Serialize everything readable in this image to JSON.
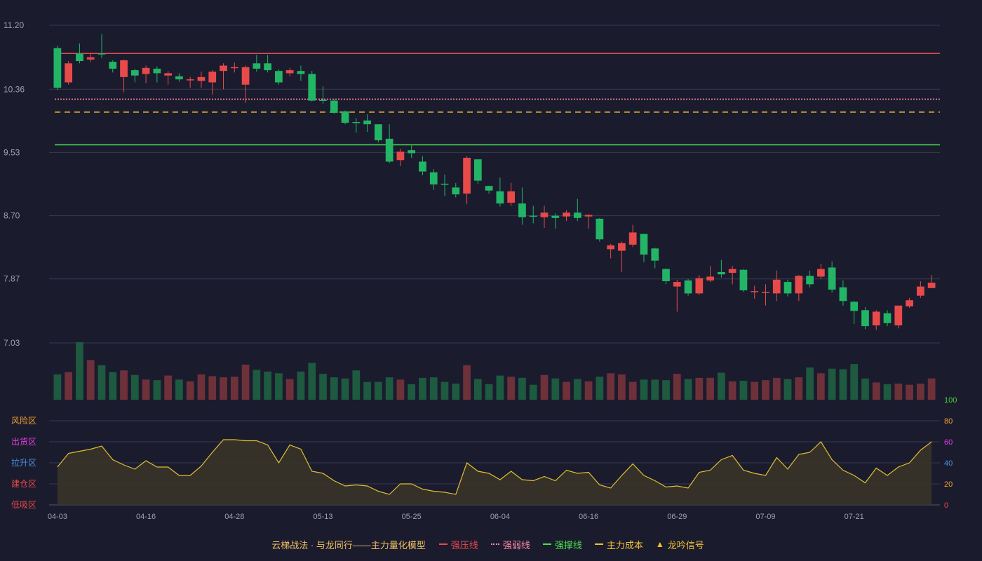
{
  "chart_data": {
    "type": "candlestick",
    "title": "云梯战法 · 与龙同行——主力量化模型",
    "x_ticks": [
      "04-03",
      "04-16",
      "04-28",
      "05-13",
      "05-25",
      "06-04",
      "06-16",
      "06-29",
      "07-09",
      "07-21"
    ],
    "x_tick_index": [
      0,
      8,
      16,
      24,
      32,
      40,
      48,
      56,
      64,
      72
    ],
    "price_axis": {
      "ticks": [
        11.2,
        10.36,
        9.53,
        8.7,
        7.87,
        7.03
      ],
      "ylim": [
        7.03,
        11.2
      ]
    },
    "ohlc": [
      [
        10.9,
        10.38,
        10.35,
        10.93
      ],
      [
        10.45,
        10.7,
        10.42,
        10.73
      ],
      [
        10.83,
        10.73,
        10.7,
        10.96
      ],
      [
        10.75,
        10.78,
        10.72,
        10.84
      ],
      [
        10.83,
        10.82,
        10.77,
        11.08
      ],
      [
        10.72,
        10.63,
        10.58,
        10.74
      ],
      [
        10.52,
        10.74,
        10.32,
        10.75
      ],
      [
        10.61,
        10.54,
        10.45,
        10.63
      ],
      [
        10.56,
        10.64,
        10.44,
        10.67
      ],
      [
        10.63,
        10.57,
        10.45,
        10.66
      ],
      [
        10.54,
        10.57,
        10.42,
        10.6
      ],
      [
        10.53,
        10.49,
        10.46,
        10.57
      ],
      [
        10.48,
        10.49,
        10.38,
        10.52
      ],
      [
        10.47,
        10.52,
        10.38,
        10.59
      ],
      [
        10.45,
        10.59,
        10.29,
        10.61
      ],
      [
        10.6,
        10.67,
        10.36,
        10.7
      ],
      [
        10.65,
        10.65,
        10.58,
        10.71
      ],
      [
        10.42,
        10.65,
        10.18,
        10.67
      ],
      [
        10.7,
        10.63,
        10.59,
        10.81
      ],
      [
        10.7,
        10.61,
        10.58,
        10.81
      ],
      [
        10.6,
        10.45,
        10.42,
        10.62
      ],
      [
        10.57,
        10.61,
        10.53,
        10.64
      ],
      [
        10.6,
        10.56,
        10.47,
        10.67
      ],
      [
        10.56,
        10.21,
        10.2,
        10.6
      ],
      [
        10.22,
        10.21,
        10.17,
        10.4
      ],
      [
        10.21,
        10.05,
        10.04,
        10.23
      ],
      [
        10.07,
        9.92,
        9.9,
        10.08
      ],
      [
        9.93,
        9.92,
        9.79,
        9.98
      ],
      [
        9.95,
        9.9,
        9.8,
        10.03
      ],
      [
        9.9,
        9.69,
        9.66,
        9.9
      ],
      [
        9.71,
        9.41,
        9.39,
        9.9
      ],
      [
        9.43,
        9.54,
        9.35,
        9.58
      ],
      [
        9.56,
        9.52,
        9.46,
        9.63
      ],
      [
        9.41,
        9.28,
        9.23,
        9.48
      ],
      [
        9.27,
        9.11,
        9.04,
        9.31
      ],
      [
        9.12,
        9.11,
        8.96,
        9.24
      ],
      [
        9.07,
        8.98,
        8.94,
        9.13
      ],
      [
        8.99,
        9.46,
        8.85,
        9.48
      ],
      [
        9.44,
        9.16,
        9.12,
        9.44
      ],
      [
        9.09,
        9.03,
        8.99,
        9.09
      ],
      [
        9.02,
        8.86,
        8.82,
        9.2
      ],
      [
        8.87,
        9.02,
        8.83,
        9.13
      ],
      [
        8.86,
        8.68,
        8.58,
        9.07
      ],
      [
        8.7,
        8.69,
        8.6,
        8.83
      ],
      [
        8.68,
        8.74,
        8.54,
        8.83
      ],
      [
        8.7,
        8.67,
        8.53,
        8.73
      ],
      [
        8.69,
        8.74,
        8.63,
        8.77
      ],
      [
        8.74,
        8.67,
        8.63,
        8.92
      ],
      [
        8.69,
        8.71,
        8.53,
        8.72
      ],
      [
        8.66,
        8.39,
        8.36,
        8.67
      ],
      [
        8.26,
        8.31,
        8.14,
        8.33
      ],
      [
        8.24,
        8.34,
        7.96,
        8.36
      ],
      [
        8.32,
        8.48,
        8.29,
        8.58
      ],
      [
        8.46,
        8.19,
        8.09,
        8.46
      ],
      [
        8.27,
        8.11,
        8.01,
        8.28
      ],
      [
        8.0,
        7.84,
        7.8,
        8.01
      ],
      [
        7.77,
        7.83,
        7.44,
        7.86
      ],
      [
        7.85,
        7.68,
        7.65,
        7.87
      ],
      [
        7.68,
        7.88,
        7.66,
        7.92
      ],
      [
        7.85,
        7.9,
        7.83,
        8.04
      ],
      [
        7.96,
        7.93,
        7.89,
        8.12
      ],
      [
        7.95,
        8.0,
        7.8,
        8.04
      ],
      [
        7.99,
        7.72,
        7.7,
        8.0
      ],
      [
        7.71,
        7.71,
        7.61,
        7.78
      ],
      [
        7.7,
        7.7,
        7.52,
        7.8
      ],
      [
        7.68,
        7.86,
        7.58,
        7.98
      ],
      [
        7.83,
        7.68,
        7.64,
        7.86
      ],
      [
        7.68,
        7.91,
        7.58,
        7.92
      ],
      [
        7.91,
        7.8,
        7.76,
        7.98
      ],
      [
        7.9,
        8.0,
        7.87,
        8.07
      ],
      [
        8.02,
        7.73,
        7.69,
        8.1
      ],
      [
        7.76,
        7.58,
        7.52,
        7.85
      ],
      [
        7.57,
        7.45,
        7.28,
        7.58
      ],
      [
        7.46,
        7.25,
        7.21,
        7.5
      ],
      [
        7.26,
        7.44,
        7.2,
        7.46
      ],
      [
        7.42,
        7.29,
        7.25,
        7.46
      ],
      [
        7.26,
        7.52,
        7.22,
        7.52
      ],
      [
        7.51,
        7.59,
        7.49,
        7.62
      ],
      [
        7.65,
        7.77,
        7.62,
        7.84
      ],
      [
        7.75,
        7.82,
        7.75,
        7.92
      ]
    ],
    "lines": [
      {
        "name": "强压线",
        "value": 10.83,
        "color": "#e84a4a",
        "style": "solid"
      },
      {
        "name": "强弱线",
        "value": 10.23,
        "color": "#ff8aa8",
        "style": "dotted"
      },
      {
        "name": "强撑线",
        "value": 9.63,
        "color": "#4be04b",
        "style": "solid"
      },
      {
        "name": "主力成本",
        "value": 10.06,
        "color": "#f0c030",
        "style": "dashed"
      }
    ],
    "volume": [
      0.44,
      0.48,
      1.0,
      0.69,
      0.6,
      0.48,
      0.51,
      0.43,
      0.35,
      0.34,
      0.42,
      0.35,
      0.32,
      0.44,
      0.41,
      0.39,
      0.4,
      0.61,
      0.52,
      0.49,
      0.46,
      0.36,
      0.49,
      0.64,
      0.45,
      0.39,
      0.37,
      0.51,
      0.31,
      0.31,
      0.39,
      0.35,
      0.27,
      0.38,
      0.39,
      0.31,
      0.28,
      0.6,
      0.36,
      0.27,
      0.42,
      0.4,
      0.38,
      0.26,
      0.43,
      0.37,
      0.31,
      0.36,
      0.32,
      0.4,
      0.46,
      0.44,
      0.31,
      0.35,
      0.35,
      0.34,
      0.45,
      0.36,
      0.38,
      0.38,
      0.47,
      0.32,
      0.33,
      0.31,
      0.34,
      0.38,
      0.36,
      0.39,
      0.56,
      0.46,
      0.54,
      0.53,
      0.62,
      0.37,
      0.3,
      0.27,
      0.28,
      0.26,
      0.28,
      0.37
    ],
    "indicator": {
      "ylim": [
        0,
        100
      ],
      "right_ticks": [
        {
          "label": "100",
          "value": 100,
          "color": "#3fd43f"
        },
        {
          "label": "80",
          "value": 80,
          "color": "#f0a030"
        },
        {
          "label": "60",
          "value": 60,
          "color": "#e040e0"
        },
        {
          "label": "40",
          "value": 40,
          "color": "#4a90e2"
        },
        {
          "label": "20",
          "value": 20,
          "color": "#f0a030"
        },
        {
          "label": "0",
          "value": 0,
          "color": "#e84a4a"
        }
      ],
      "zones": [
        {
          "label": "风险区",
          "value": 80,
          "color": "#f0a030"
        },
        {
          "label": "出货区",
          "value": 60,
          "color": "#e040e0"
        },
        {
          "label": "拉升区",
          "value": 40,
          "color": "#4a90e2"
        },
        {
          "label": "建仓区",
          "value": 20,
          "color": "#e84a4a"
        },
        {
          "label": "低吸区",
          "value": 0,
          "color": "#e84a4a"
        }
      ],
      "values": [
        36,
        49,
        51,
        53,
        56,
        43,
        38,
        34,
        42,
        36,
        36,
        28,
        28,
        37,
        50,
        62,
        62,
        61,
        61,
        57,
        40,
        57,
        53,
        32,
        30,
        23,
        18,
        19,
        18,
        13,
        10,
        20,
        20,
        15,
        13,
        12,
        10,
        40,
        32,
        30,
        24,
        32,
        24,
        23,
        27,
        23,
        33,
        30,
        31,
        19,
        16,
        28,
        39,
        28,
        23,
        17,
        18,
        16,
        31,
        33,
        43,
        47,
        33,
        30,
        28,
        45,
        34,
        48,
        50,
        60,
        43,
        33,
        28,
        21,
        35,
        28,
        36,
        40,
        52,
        60
      ],
      "color": "#e0c030"
    },
    "legend": [
      {
        "label": "强压线",
        "color": "#e84a4a",
        "style": "solid"
      },
      {
        "label": "强弱线",
        "color": "#ff8aa8",
        "style": "dotted"
      },
      {
        "label": "强撑线",
        "color": "#4be04b",
        "style": "solid"
      },
      {
        "label": "主力成本",
        "color": "#f0c030",
        "style": "dashed"
      },
      {
        "label": "龙吟信号",
        "color": "#f0c030",
        "style": "triangle"
      }
    ],
    "colors": {
      "up": "#e84a4a",
      "down": "#22b565",
      "vol_up": "#6e3139",
      "vol_down": "#1d5a3f",
      "grid": "#3a3a4e",
      "axis_text": "#a0a0b0"
    }
  }
}
